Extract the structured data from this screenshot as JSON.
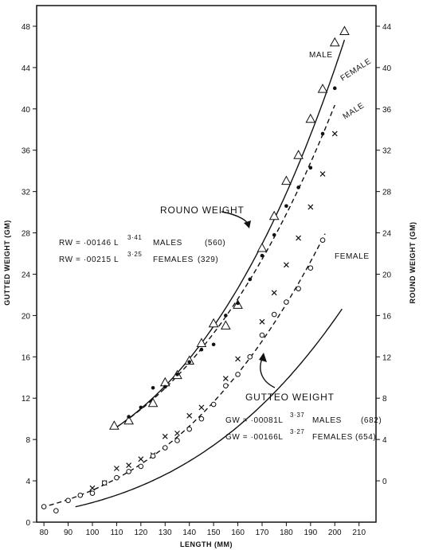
{
  "chart_data": {
    "type": "scatter",
    "xlabel": "LENGTH (MM)",
    "ylabel_left": "GUTTED WEIGHT (GM)",
    "ylabel_right": "ROUND WEIGHT (GM)",
    "xlim": [
      77,
      217
    ],
    "ylim_left": [
      0,
      50
    ],
    "ylim_right": [
      -4,
      46
    ],
    "x_ticks": [
      80,
      90,
      100,
      110,
      120,
      130,
      140,
      150,
      160,
      170,
      180,
      190,
      200,
      210
    ],
    "y_ticks_left": [
      0,
      4,
      8,
      12,
      16,
      20,
      24,
      28,
      32,
      36,
      40,
      44,
      48
    ],
    "y_ticks_right": [
      0,
      4,
      8,
      12,
      16,
      20,
      24,
      28,
      32,
      36,
      40,
      44
    ],
    "series": [
      {
        "name": "ROUND WEIGHT MALE",
        "axis": "right",
        "marker": "triangle",
        "line": "solid",
        "a": 0.00146,
        "b": 3.41,
        "fit_range": [
          109,
          204
        ],
        "points": [
          [
            109,
            5.3
          ],
          [
            115,
            5.8
          ],
          [
            125,
            7.5
          ],
          [
            130,
            9.5
          ],
          [
            135,
            10.2
          ],
          [
            140,
            11.6
          ],
          [
            145,
            13.3
          ],
          [
            150,
            15.2
          ],
          [
            155,
            15.0
          ],
          [
            160,
            17.0
          ],
          [
            170,
            22.5
          ],
          [
            175,
            25.6
          ],
          [
            180,
            29.0
          ],
          [
            185,
            31.5
          ],
          [
            190,
            35.0
          ],
          [
            195,
            37.9
          ],
          [
            200,
            42.4
          ],
          [
            204,
            43.5
          ]
        ]
      },
      {
        "name": "ROUND WEIGHT FEMALE",
        "axis": "right",
        "marker": "dot",
        "line": "dashed",
        "a": 0.00215,
        "b": 3.25,
        "fit_range": [
          113,
          200
        ],
        "points": [
          [
            115,
            6.2
          ],
          [
            120,
            7.1
          ],
          [
            125,
            9.0
          ],
          [
            130,
            9.1
          ],
          [
            135,
            10.3
          ],
          [
            140,
            11.5
          ],
          [
            145,
            12.7
          ],
          [
            150,
            13.2
          ],
          [
            155,
            16.0
          ],
          [
            160,
            17.2
          ],
          [
            165,
            19.5
          ],
          [
            170,
            21.8
          ],
          [
            175,
            23.8
          ],
          [
            180,
            26.6
          ],
          [
            185,
            28.4
          ],
          [
            190,
            30.3
          ],
          [
            195,
            33.6
          ],
          [
            200,
            38.0
          ]
        ]
      },
      {
        "name": "GUTTED WEIGHT MALE",
        "axis": "left",
        "marker": "x",
        "line": "solid",
        "a": 0.00081,
        "b": 3.37,
        "fit_range": [
          93,
          203
        ],
        "points": [
          [
            100,
            3.3
          ],
          [
            105,
            3.8
          ],
          [
            110,
            5.2
          ],
          [
            115,
            5.5
          ],
          [
            120,
            6.1
          ],
          [
            125,
            6.5
          ],
          [
            130,
            8.3
          ],
          [
            135,
            8.6
          ],
          [
            140,
            10.3
          ],
          [
            145,
            11.1
          ],
          [
            155,
            13.9
          ],
          [
            160,
            15.8
          ],
          [
            170,
            19.4
          ],
          [
            175,
            22.2
          ],
          [
            180,
            24.9
          ],
          [
            185,
            27.5
          ],
          [
            190,
            30.5
          ],
          [
            195,
            33.7
          ],
          [
            200,
            37.6
          ]
        ]
      },
      {
        "name": "GUTTED WEIGHT FEMALE",
        "axis": "left",
        "marker": "circle",
        "line": "dashed",
        "a": 0.00166,
        "b": 3.27,
        "fit_range": [
          79,
          196
        ],
        "points": [
          [
            80,
            1.5
          ],
          [
            85,
            1.1
          ],
          [
            90,
            2.1
          ],
          [
            95,
            2.6
          ],
          [
            100,
            2.8
          ],
          [
            105,
            3.8
          ],
          [
            110,
            4.3
          ],
          [
            115,
            4.9
          ],
          [
            120,
            5.4
          ],
          [
            125,
            6.4
          ],
          [
            130,
            7.2
          ],
          [
            135,
            7.9
          ],
          [
            140,
            9.0
          ],
          [
            145,
            10.0
          ],
          [
            150,
            11.4
          ],
          [
            155,
            13.2
          ],
          [
            160,
            14.3
          ],
          [
            165,
            16.0
          ],
          [
            170,
            18.1
          ],
          [
            175,
            20.1
          ],
          [
            180,
            21.3
          ],
          [
            185,
            22.6
          ],
          [
            190,
            24.6
          ],
          [
            195,
            27.3
          ]
        ]
      }
    ],
    "curve_labels": {
      "male_round": "MALE",
      "female_round": "FEMALE",
      "male_gutted": "MALE",
      "female_gutted": "FEMALE"
    },
    "annotations": {
      "round_weight": "ROUNO WEIGHT",
      "gutted_weight": "GUTTEO WEIGHT",
      "rw_males": {
        "prefix": "RW = ·00146 L",
        "exp": "3·41",
        "suffix": "MALES",
        "n": "(560)"
      },
      "rw_females": {
        "prefix": "RW = ·00215 L",
        "exp": "3·25",
        "suffix": "FEMALES",
        "n": "(329)"
      },
      "gw_males": {
        "prefix": "GW = ·00081L",
        "exp": "3·37",
        "suffix": "MALES",
        "n": "(682)"
      },
      "gw_females": {
        "prefix": "GW = ·00166L",
        "exp": "3·27",
        "suffix": "FEMALES",
        "n": "(654)"
      }
    }
  }
}
